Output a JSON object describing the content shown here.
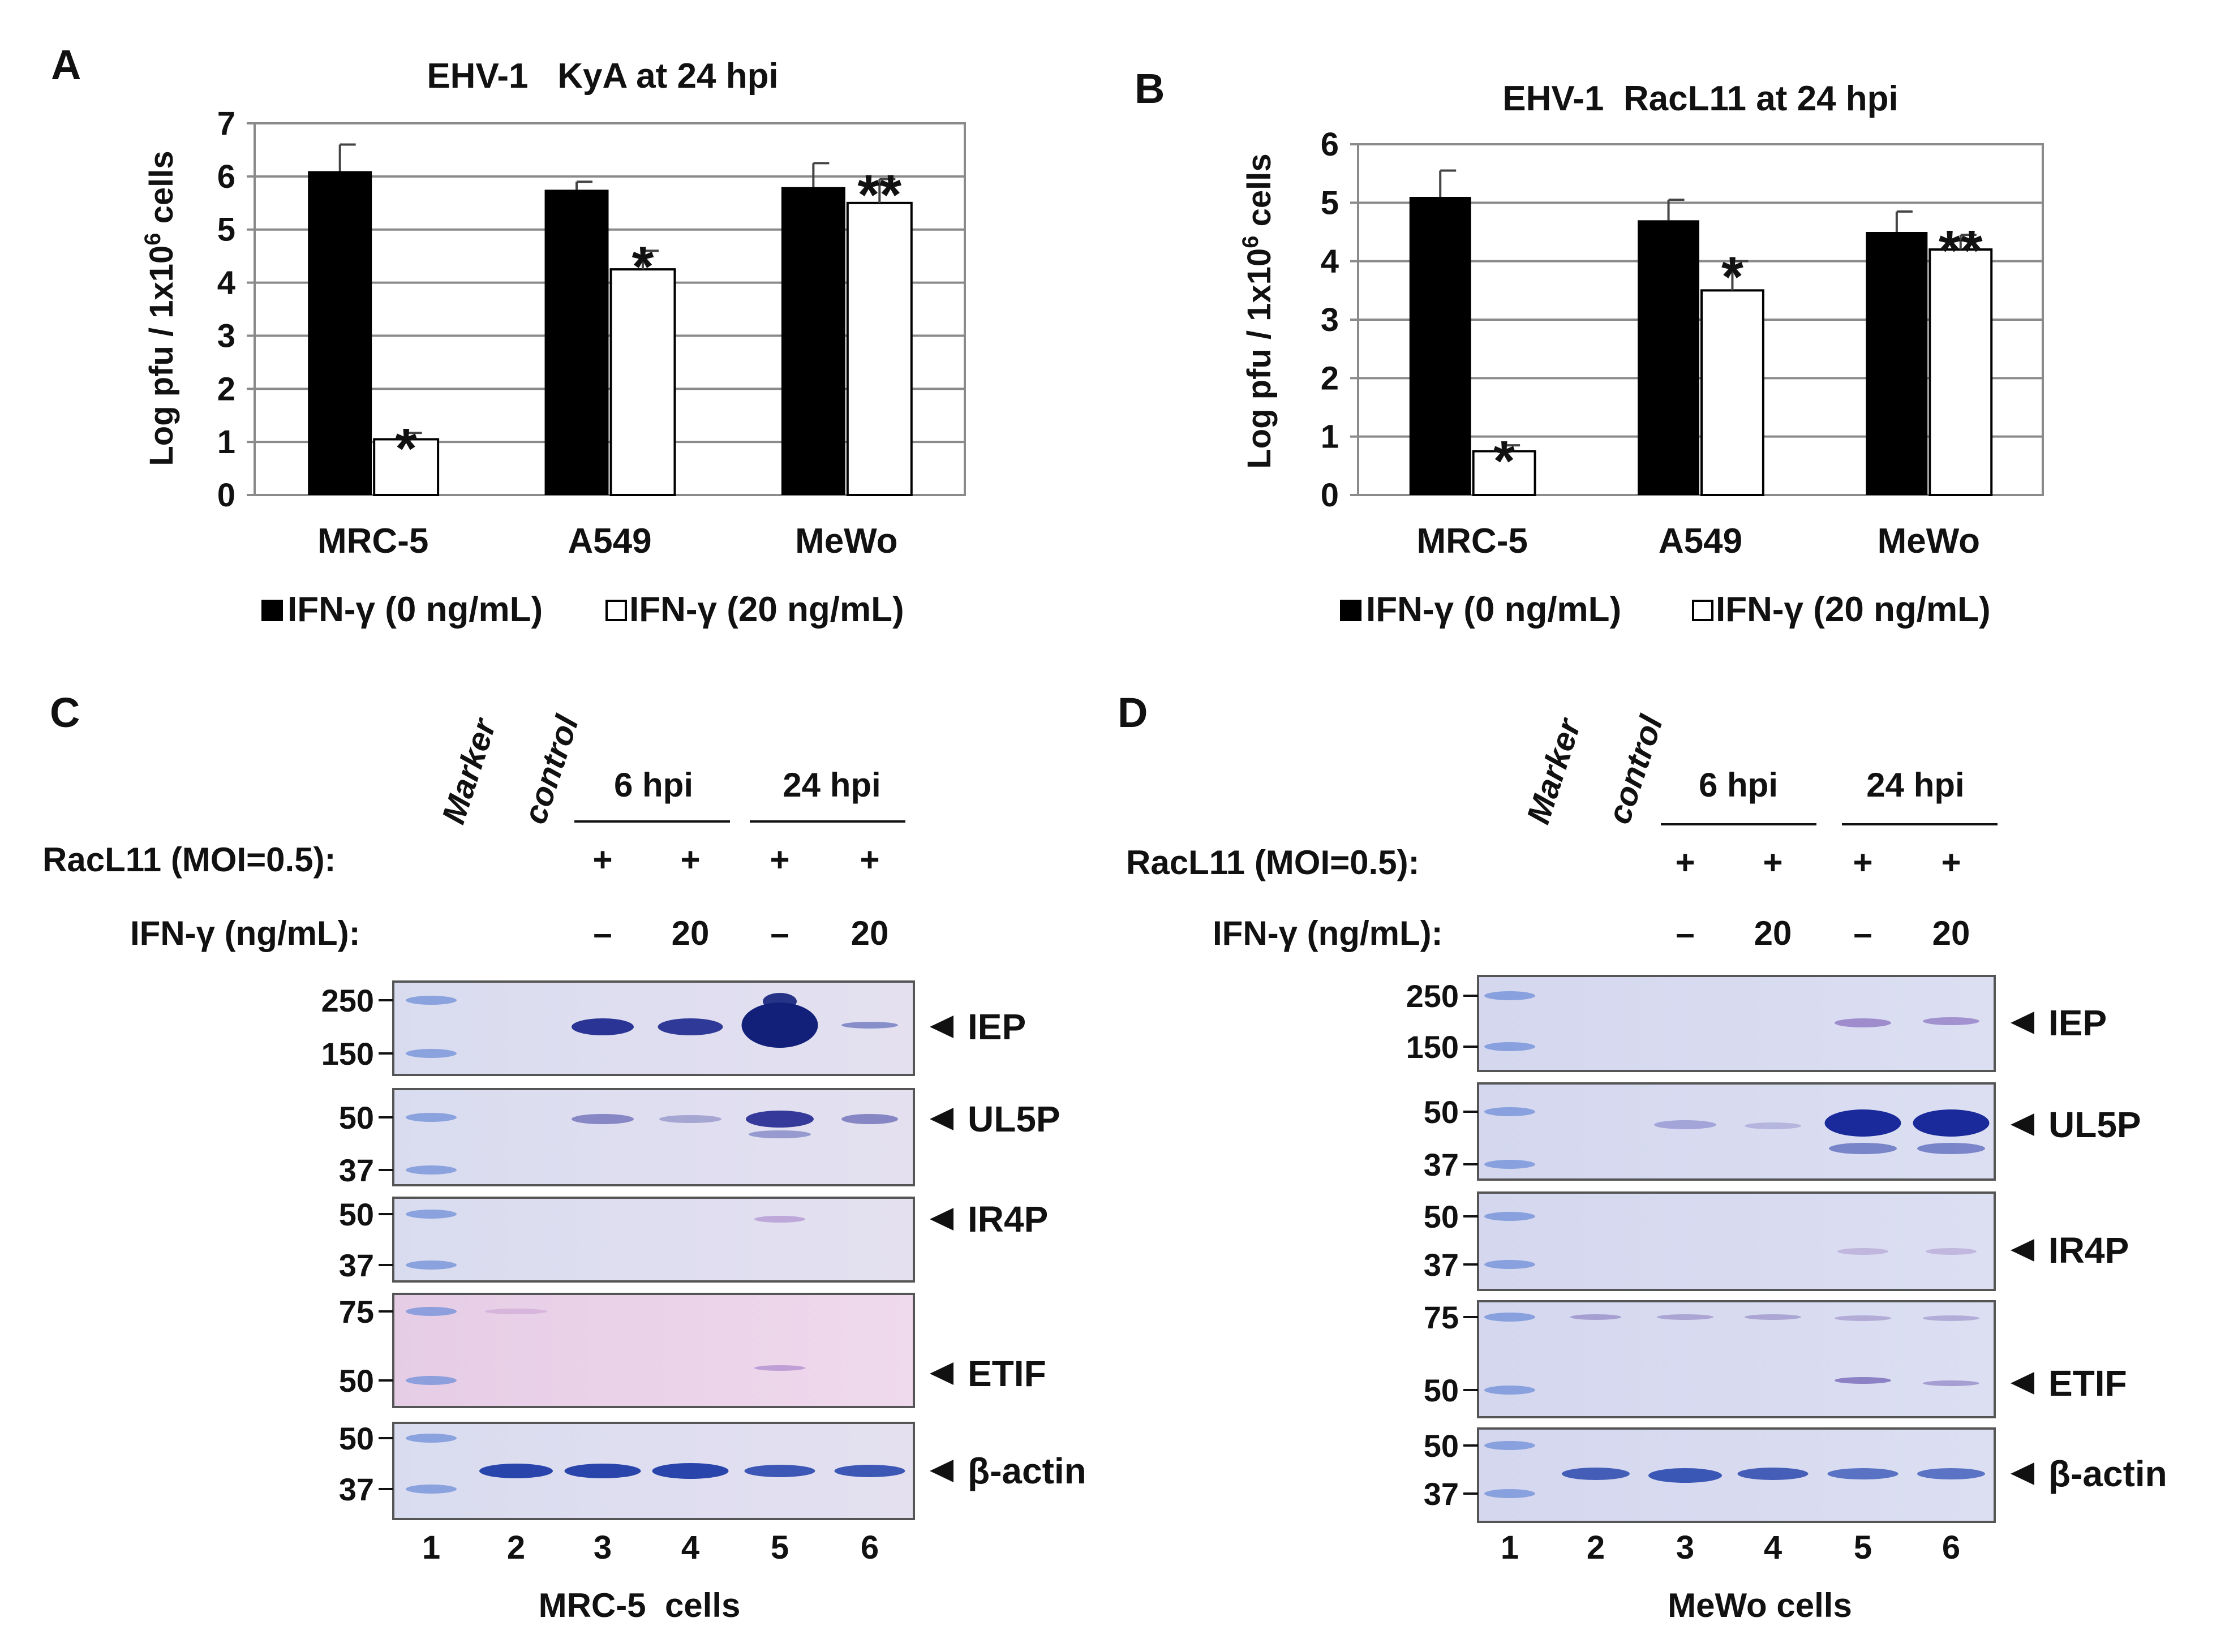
{
  "figure": {
    "panels": [
      "A",
      "B",
      "C",
      "D"
    ]
  },
  "chart_data": [
    {
      "panel": "A",
      "type": "bar",
      "title": "EHV-1   KyA at 24 hpi",
      "ylabel": "Log pfu / 1x10",
      "ylabel_sup": "6",
      "ylabel_tail": " cells",
      "ylim": [
        0,
        7
      ],
      "yticks": [
        "0",
        "1",
        "2",
        "3",
        "4",
        "5",
        "6",
        "7"
      ],
      "categories": [
        "MRC-5",
        "A549",
        "MeWo"
      ],
      "series": [
        {
          "name": "IFN-γ (0 ng/mL)",
          "fill": "black",
          "values": [
            6.1,
            5.75,
            5.8
          ],
          "errors": [
            0.5,
            0.15,
            0.45
          ],
          "marks": [
            "",
            "",
            ""
          ]
        },
        {
          "name": "IFN-γ (20 ng/mL)",
          "fill": "white",
          "values": [
            1.05,
            4.25,
            5.5
          ],
          "errors": [
            0.12,
            0.35,
            0.45
          ],
          "marks": [
            "*",
            "*",
            "**"
          ]
        }
      ],
      "grid": true
    },
    {
      "panel": "B",
      "type": "bar",
      "title": "EHV-1  RacL11 at 24 hpi",
      "ylabel": "Log pfu / 1x10",
      "ylabel_sup": "6",
      "ylabel_tail": " cells",
      "ylim": [
        0,
        6
      ],
      "yticks": [
        "0",
        "1",
        "2",
        "3",
        "4",
        "5",
        "6"
      ],
      "categories": [
        "MRC-5",
        "A549",
        "MeWo"
      ],
      "series": [
        {
          "name": "IFN-γ (0 ng/mL)",
          "fill": "black",
          "values": [
            5.1,
            4.7,
            4.5
          ],
          "errors": [
            0.45,
            0.35,
            0.35
          ],
          "marks": [
            "",
            "",
            ""
          ]
        },
        {
          "name": "IFN-γ (20 ng/mL)",
          "fill": "white",
          "values": [
            0.75,
            3.5,
            4.2
          ],
          "errors": [
            0.1,
            0.5,
            0.25
          ],
          "marks": [
            "*",
            "*",
            "**"
          ]
        }
      ],
      "grid": true
    }
  ],
  "blots": [
    {
      "panel": "C",
      "lane_headers": [
        "Marker",
        "control"
      ],
      "time_groups": [
        "6 hpi",
        "24 hpi"
      ],
      "row1_label": "RacL11 (MOI=0.5):",
      "row1_values": [
        "+",
        "+",
        "+",
        "+"
      ],
      "row2_label": "IFN-γ (ng/mL):",
      "row2_values": [
        "–",
        "20",
        "–",
        "20"
      ],
      "lanes": [
        "1",
        "2",
        "3",
        "4",
        "5",
        "6"
      ],
      "cells_label": "MRC-5  cells",
      "strips": [
        {
          "markers": [
            "250",
            "150"
          ],
          "label": "IEP"
        },
        {
          "markers": [
            "50",
            "37"
          ],
          "label": "UL5P"
        },
        {
          "markers": [
            "50",
            "37"
          ],
          "label": "IR4P"
        },
        {
          "markers": [
            "75",
            "50"
          ],
          "label": "ETIF"
        },
        {
          "markers": [
            "50",
            "37"
          ],
          "label": "β-actin"
        }
      ]
    },
    {
      "panel": "D",
      "lane_headers": [
        "Marker",
        "control"
      ],
      "time_groups": [
        "6 hpi",
        "24 hpi"
      ],
      "row1_label": "RacL11 (MOI=0.5):",
      "row1_values": [
        "+",
        "+",
        "+",
        "+"
      ],
      "row2_label": "IFN-γ (ng/mL):",
      "row2_values": [
        "–",
        "20",
        "–",
        "20"
      ],
      "lanes": [
        "1",
        "2",
        "3",
        "4",
        "5",
        "6"
      ],
      "cells_label": "MeWo cells",
      "strips": [
        {
          "markers": [
            "250",
            "150"
          ],
          "label": "IEP"
        },
        {
          "markers": [
            "50",
            "37"
          ],
          "label": "UL5P"
        },
        {
          "markers": [
            "50",
            "37"
          ],
          "label": "IR4P"
        },
        {
          "markers": [
            "75",
            "50"
          ],
          "label": "ETIF"
        },
        {
          "markers": [
            "50",
            "37"
          ],
          "label": "β-actin"
        }
      ]
    }
  ]
}
